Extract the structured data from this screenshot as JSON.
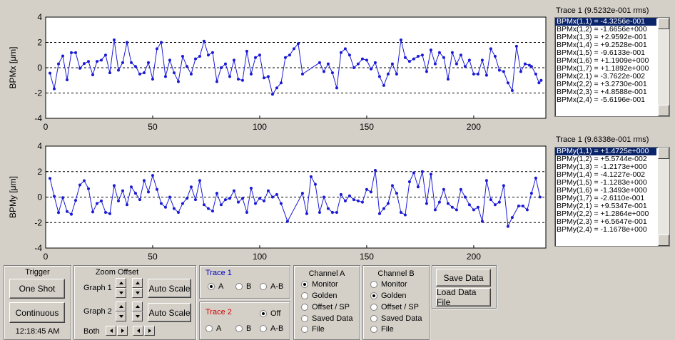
{
  "chart_data": [
    {
      "type": "line",
      "ylabel": "BPMx [μm]",
      "color": "#1a1ad6",
      "x": [
        2,
        4,
        6,
        8,
        10,
        12,
        14,
        16,
        18,
        20,
        22,
        24,
        26,
        28,
        30,
        32,
        34,
        36,
        38,
        40,
        42,
        44,
        46,
        48,
        50,
        52,
        54,
        56,
        58,
        60,
        62,
        64,
        66,
        68,
        70,
        72,
        74,
        76,
        78,
        80,
        82,
        84,
        86,
        88,
        90,
        92,
        94,
        96,
        98,
        100,
        102,
        104,
        106,
        108,
        110,
        112,
        114,
        116,
        118,
        120,
        128,
        130,
        132,
        134,
        136,
        138,
        140,
        142,
        144,
        146,
        148,
        150,
        152,
        154,
        156,
        158,
        160,
        162,
        164,
        166,
        168,
        170,
        172,
        174,
        176,
        178,
        180,
        182,
        184,
        186,
        188,
        190,
        192,
        194,
        196,
        198,
        200,
        202,
        204,
        206,
        208,
        210,
        212,
        214,
        216,
        218,
        220,
        222,
        224,
        226,
        227,
        229,
        230.5,
        231.5
      ],
      "values": [
        -0.43,
        -1.67,
        0.3,
        0.93,
        -0.96,
        1.19,
        1.19,
        -0.04,
        0.33,
        0.49,
        -0.56,
        0.5,
        0.6,
        1.0,
        -0.4,
        2.2,
        -0.2,
        0.4,
        2.0,
        0.4,
        0.1,
        -0.5,
        -0.4,
        0.4,
        -0.9,
        1.5,
        2.0,
        -0.7,
        0.6,
        -0.4,
        -1.1,
        0.9,
        0.1,
        -0.5,
        0.7,
        0.9,
        2.1,
        1.0,
        1.2,
        -1.1,
        0.0,
        0.3,
        -0.7,
        0.6,
        -0.9,
        -1.0,
        1.3,
        -0.5,
        0.8,
        1.0,
        -0.8,
        -0.7,
        -2.1,
        -1.6,
        -1.2,
        0.8,
        1.0,
        1.5,
        1.9,
        -0.5,
        0.4,
        -0.3,
        0.3,
        -0.4,
        -1.6,
        1.2,
        1.5,
        1.0,
        0.0,
        0.3,
        0.7,
        0.6,
        -0.1,
        0.4,
        -0.7,
        -1.4,
        -0.5,
        0.3,
        -0.5,
        2.2,
        0.8,
        0.5,
        0.7,
        0.9,
        1.0,
        -0.3,
        1.4,
        0.3,
        1.2,
        0.8,
        -0.9,
        1.2,
        0.3,
        1.0,
        0.1,
        0.6,
        -0.5,
        -0.5,
        0.6,
        -0.6,
        1.5,
        0.9,
        -0.2,
        -0.3,
        -1.2,
        -1.8,
        1.7,
        -0.3,
        0.3,
        0.2,
        0.1,
        -0.5,
        -1.2,
        -1.0
      ],
      "xlim": [
        0,
        233.7
      ],
      "ylim": [
        -4,
        4
      ],
      "xticks": [
        0,
        50,
        100,
        150,
        200
      ],
      "yticks": [
        -4,
        -2,
        0,
        2,
        4
      ],
      "grid": true
    },
    {
      "type": "line",
      "ylabel": "BPMy [μm]",
      "color": "#1a1ad6",
      "x": [
        2,
        4,
        6,
        8,
        10,
        12,
        14,
        16,
        18,
        20,
        22,
        24,
        26,
        28,
        30,
        32,
        34,
        36,
        38,
        40,
        42,
        44,
        46,
        48,
        50,
        52,
        54,
        56,
        58,
        60,
        62,
        64,
        66,
        68,
        70,
        72,
        74,
        76,
        78,
        80,
        82,
        84,
        86,
        88,
        90,
        92,
        94,
        96,
        98,
        100,
        102,
        104,
        106,
        108,
        110,
        113,
        120,
        122,
        124,
        126,
        128,
        130,
        132,
        134,
        136,
        138,
        140,
        142,
        144,
        146,
        148,
        150,
        152,
        154,
        156,
        158,
        160,
        162,
        164,
        166,
        168,
        170,
        172,
        174,
        176,
        178,
        180,
        182,
        184,
        186,
        188,
        190,
        192,
        194,
        196,
        198,
        200,
        202,
        204,
        206,
        208,
        210,
        212,
        214,
        216,
        218,
        221,
        223,
        225,
        227,
        229,
        231
      ],
      "values": [
        1.47,
        0.06,
        -1.22,
        -0.04,
        -1.13,
        -1.35,
        -0.26,
        0.95,
        1.29,
        0.66,
        -1.17,
        -0.5,
        -0.3,
        -1.2,
        -1.3,
        0.9,
        -0.3,
        0.5,
        -0.6,
        0.8,
        0.3,
        -0.2,
        1.3,
        0.4,
        1.7,
        0.6,
        -0.5,
        -0.8,
        0.0,
        -0.9,
        -1.2,
        -0.5,
        -0.1,
        0.8,
        -0.2,
        1.3,
        -0.6,
        -0.9,
        -1.1,
        0.3,
        -0.6,
        -0.2,
        -0.1,
        0.5,
        -0.4,
        -0.1,
        -1.2,
        0.7,
        -0.5,
        -0.1,
        -0.3,
        0.5,
        0.0,
        0.2,
        -0.5,
        -1.9,
        0.3,
        -1.3,
        1.6,
        1.0,
        -1.2,
        0.0,
        -0.9,
        -1.2,
        -1.2,
        0.2,
        -0.3,
        0.1,
        -0.2,
        -0.3,
        -0.4,
        0.6,
        0.4,
        2.1,
        -1.3,
        -0.9,
        -0.5,
        0.9,
        0.3,
        -1.2,
        -1.4,
        1.2,
        1.9,
        0.8,
        2.0,
        -0.5,
        1.8,
        -1.0,
        -0.4,
        0.6,
        -0.5,
        -0.8,
        -1.0,
        0.6,
        0.0,
        -0.6,
        -1.0,
        -0.8,
        -1.9,
        1.3,
        -0.2,
        -0.6,
        -0.4,
        0.9,
        -2.3,
        -1.6,
        -0.7,
        -0.7,
        -1.0,
        0.3,
        1.5,
        0.0
      ],
      "xlim": [
        0,
        233.7
      ],
      "ylim": [
        -4,
        4
      ],
      "xticks": [
        0,
        50,
        100,
        150,
        200
      ],
      "yticks": [
        -4,
        -2,
        0,
        2,
        4
      ],
      "grid": true
    }
  ],
  "lists": [
    {
      "title": "Trace 1 (9.5232e-001 rms)",
      "selected": 0,
      "items": [
        "BPMx(1,1) = -4.3256e-001",
        "BPMx(1,2) = -1.6656e+000",
        "BPMx(1,3) = +2.9592e-001",
        "BPMx(1,4) = +9.2528e-001",
        "BPMx(1,5) = -9.6133e-001",
        "BPMx(1,6) = +1.1909e+000",
        "BPMx(1,7) = +1.1892e+000",
        "BPMx(2,1) = -3.7622e-002",
        "BPMx(2,2) = +3.2730e-001",
        "BPMx(2,3) = +4.8588e-001",
        "BPMx(2,4) = -5.6196e-001"
      ]
    },
    {
      "title": "Trace 1 (9.6338e-001 rms)",
      "selected": 0,
      "items": [
        "BPMy(1,1) = +1.4725e+000",
        "BPMy(1,2) = +5.5744e-002",
        "BPMy(1,3) = -1.2173e+000",
        "BPMy(1,4) = -4.1227e-002",
        "BPMy(1,5) = -1.1283e+000",
        "BPMy(1,6) = -1.3493e+000",
        "BPMy(1,7) = -2.6110e-001",
        "BPMy(2,1) = +9.5347e-001",
        "BPMy(2,2) = +1.2864e+000",
        "BPMy(2,3) = +6.5647e-001",
        "BPMy(2,4) = -1.1678e+000"
      ]
    }
  ],
  "trigger": {
    "title": "Trigger",
    "buttons": [
      "One Shot",
      "Continuous"
    ],
    "time": "12:18:45 AM"
  },
  "zoom": {
    "title": "Zoom Offset",
    "rows": [
      "Graph 1",
      "Graph 2",
      "Both"
    ],
    "buttons": [
      "Auto Scale",
      "Auto Scale"
    ]
  },
  "trace1": {
    "title": "Trace 1",
    "options": [
      "A",
      "B",
      "A-B"
    ],
    "selected": 0
  },
  "trace2": {
    "title": "Trace 2",
    "options": [
      "Off",
      "A",
      "B",
      "A-B"
    ],
    "selected": 0
  },
  "channel_a": {
    "title": "Channel A",
    "options": [
      "Monitor",
      "Golden",
      "Offset / SP",
      "Saved Data",
      "File"
    ],
    "selected": 0
  },
  "channel_b": {
    "title": "Channel B",
    "options": [
      "Monitor",
      "Golden",
      "Offset / SP",
      "Saved Data",
      "File"
    ],
    "selected": 1
  },
  "file_buttons": [
    "Save Data",
    "Load Data File"
  ]
}
